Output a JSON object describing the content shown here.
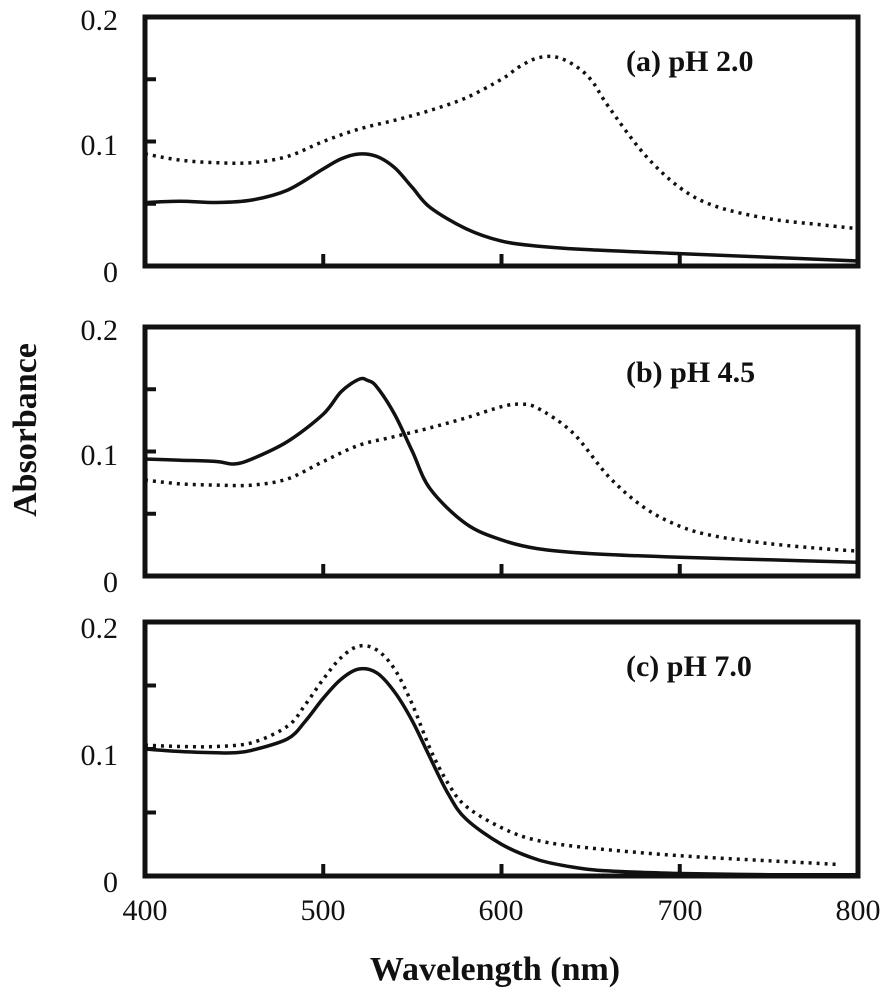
{
  "chart_data": {
    "type": "line",
    "ylabel": "Absorbance",
    "xlabel": "Wavelength (nm)",
    "xlim": [
      400,
      800
    ],
    "ylim": [
      0,
      0.2
    ],
    "x_ticks": [
      400,
      500,
      600,
      700,
      800
    ],
    "y_tick_labels": [
      "0",
      "0.1",
      "0.2"
    ],
    "y_ticks": [
      0,
      0.05,
      0.1,
      0.15,
      0.2
    ],
    "panels": [
      {
        "label": "(a) pH 2.0",
        "series": [
          {
            "name": "solid",
            "style": "solid",
            "x": [
              400,
              420,
              440,
              460,
              480,
              500,
              510,
              520,
              530,
              540,
              550,
              560,
              580,
              600,
              620,
              650,
              700,
              750,
              800
            ],
            "y": [
              0.051,
              0.052,
              0.051,
              0.053,
              0.061,
              0.078,
              0.086,
              0.09,
              0.088,
              0.079,
              0.063,
              0.047,
              0.03,
              0.02,
              0.016,
              0.013,
              0.01,
              0.007,
              0.004
            ]
          },
          {
            "name": "dotted",
            "style": "dotted",
            "x": [
              400,
              420,
              440,
              460,
              480,
              500,
              520,
              540,
              560,
              580,
              600,
              610,
              620,
              630,
              640,
              650,
              660,
              680,
              700,
              720,
              750,
              780,
              800
            ],
            "y": [
              0.09,
              0.085,
              0.083,
              0.083,
              0.088,
              0.1,
              0.11,
              0.117,
              0.125,
              0.135,
              0.15,
              0.16,
              0.167,
              0.168,
              0.162,
              0.15,
              0.128,
              0.09,
              0.063,
              0.048,
              0.038,
              0.033,
              0.03
            ]
          }
        ]
      },
      {
        "label": "(b)  pH 4.5",
        "series": [
          {
            "name": "solid",
            "style": "solid",
            "x": [
              400,
              420,
              440,
              450,
              460,
              480,
              500,
              510,
              520,
              525,
              530,
              540,
              550,
              560,
              580,
              600,
              620,
              650,
              700,
              750,
              800
            ],
            "y": [
              0.094,
              0.093,
              0.092,
              0.09,
              0.094,
              0.108,
              0.13,
              0.148,
              0.158,
              0.157,
              0.152,
              0.13,
              0.1,
              0.07,
              0.042,
              0.029,
              0.022,
              0.018,
              0.015,
              0.013,
              0.011
            ]
          },
          {
            "name": "dotted",
            "style": "dotted",
            "x": [
              400,
              420,
              440,
              460,
              480,
              500,
              520,
              540,
              560,
              580,
              600,
              610,
              620,
              640,
              660,
              680,
              700,
              720,
              750,
              780,
              800
            ],
            "y": [
              0.077,
              0.074,
              0.073,
              0.073,
              0.078,
              0.092,
              0.105,
              0.112,
              0.119,
              0.127,
              0.136,
              0.138,
              0.135,
              0.115,
              0.08,
              0.055,
              0.04,
              0.032,
              0.026,
              0.022,
              0.02
            ]
          }
        ]
      },
      {
        "label": "(c)  pH 7.0",
        "series": [
          {
            "name": "solid",
            "style": "solid",
            "x": [
              400,
              420,
              440,
              450,
              460,
              480,
              490,
              500,
              510,
              520,
              530,
              540,
              550,
              560,
              570,
              580,
              600,
              620,
              640,
              660,
              700,
              750,
              800
            ],
            "y": [
              0.1,
              0.098,
              0.097,
              0.097,
              0.099,
              0.108,
              0.122,
              0.14,
              0.155,
              0.163,
              0.16,
              0.145,
              0.122,
              0.093,
              0.065,
              0.045,
              0.025,
              0.013,
              0.007,
              0.004,
              0.002,
              0.001,
              0.001
            ]
          },
          {
            "name": "dotted",
            "style": "dotted",
            "x": [
              400,
              420,
              440,
              460,
              480,
              490,
              500,
              510,
              520,
              530,
              540,
              550,
              560,
              570,
              580,
              600,
              620,
              650,
              700,
              750,
              790
            ],
            "y": [
              0.103,
              0.102,
              0.102,
              0.105,
              0.118,
              0.135,
              0.155,
              0.172,
              0.181,
              0.178,
              0.163,
              0.135,
              0.1,
              0.073,
              0.055,
              0.038,
              0.028,
              0.022,
              0.016,
              0.012,
              0.009
            ]
          }
        ]
      }
    ]
  }
}
